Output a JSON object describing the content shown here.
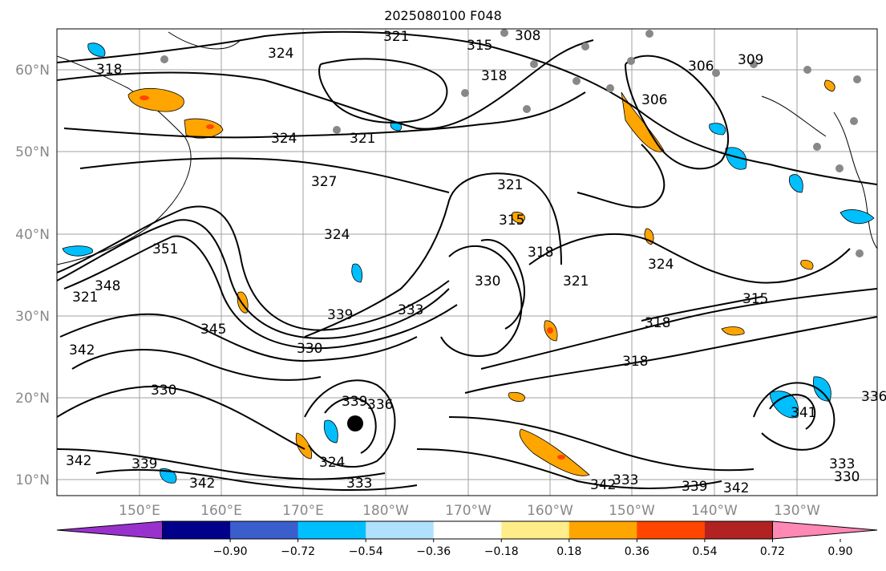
{
  "title": "2025080100 F048",
  "map": {
    "lat_labels": [
      "60°N",
      "50°N",
      "40°N",
      "30°N",
      "20°N",
      "10°N"
    ],
    "lon_labels": [
      "150°E",
      "160°E",
      "170°E",
      "180°W",
      "170°W",
      "160°W",
      "150°W",
      "140°W",
      "130°W"
    ],
    "contour_labels": [
      "318",
      "321",
      "324",
      "315",
      "308",
      "318",
      "306",
      "309",
      "306",
      "324",
      "321",
      "327",
      "324",
      "321",
      "315",
      "318",
      "351",
      "321",
      "348",
      "324",
      "330",
      "333",
      "321",
      "315",
      "345",
      "342",
      "339",
      "330",
      "318",
      "318",
      "330",
      "339",
      "342",
      "339",
      "336",
      "324",
      "333",
      "342",
      "342",
      "333",
      "339",
      "342",
      "341",
      "336",
      "333",
      "330"
    ],
    "colors": {
      "positive_shading": "#ffa500",
      "negative_shading": "#00bfff",
      "station": "#888888",
      "contour": "#000000"
    }
  },
  "colorbar": {
    "tick_labels": [
      "−0.90",
      "−0.72",
      "−0.54",
      "−0.36",
      "−0.18",
      "0.18",
      "0.36",
      "0.54",
      "0.72",
      "0.90"
    ],
    "colors": [
      "#9932cc",
      "#00008b",
      "#3a5fcd",
      "#00bfff",
      "#afe1ff",
      "#ffffff",
      "#ffed89",
      "#ffa500",
      "#ff4500",
      "#b22222",
      "#ff88b4"
    ]
  }
}
